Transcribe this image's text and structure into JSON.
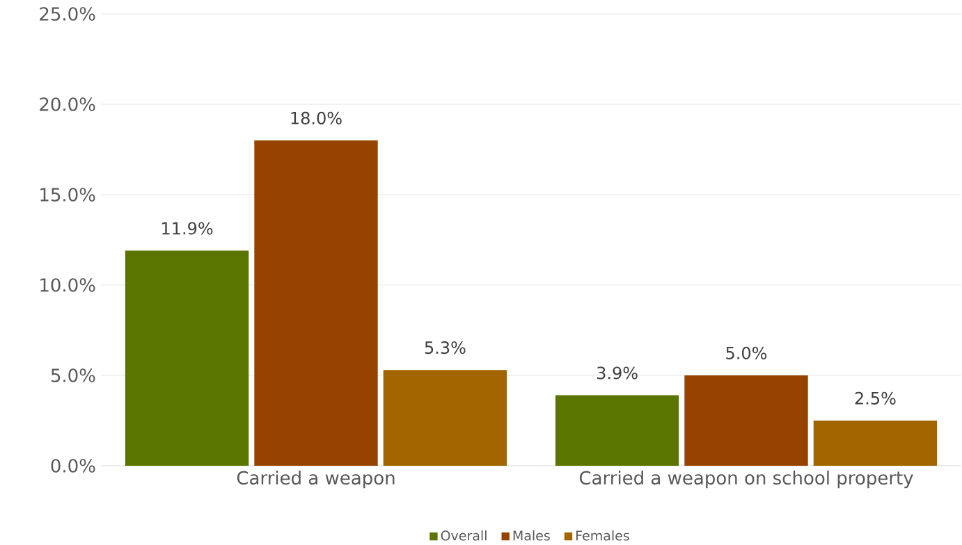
{
  "chart_data": {
    "type": "bar",
    "categories": [
      "Carried a weapon",
      "Carried a weapon on school property"
    ],
    "series": [
      {
        "name": "Overall",
        "color": "#5a7500",
        "values": [
          11.9,
          3.9
        ],
        "value_labels": [
          "11.9%",
          "3.9%"
        ]
      },
      {
        "name": "Males",
        "color": "#974300",
        "values": [
          18.0,
          5.0
        ],
        "value_labels": [
          "18.0%",
          "5.0%"
        ]
      },
      {
        "name": "Females",
        "color": "#a26500",
        "values": [
          5.3,
          2.5
        ],
        "value_labels": [
          "5.3%",
          "2.5%"
        ]
      }
    ],
    "ylim": [
      0,
      25
    ],
    "yticks": [
      {
        "value": 0,
        "label": "0.0%"
      },
      {
        "value": 5,
        "label": "5.0%"
      },
      {
        "value": 10,
        "label": "10.0%"
      },
      {
        "value": 15,
        "label": "15.0%"
      },
      {
        "value": 20,
        "label": "20.0%"
      },
      {
        "value": 25,
        "label": "25.0%"
      }
    ],
    "grid": "y",
    "legend": "bottom"
  }
}
